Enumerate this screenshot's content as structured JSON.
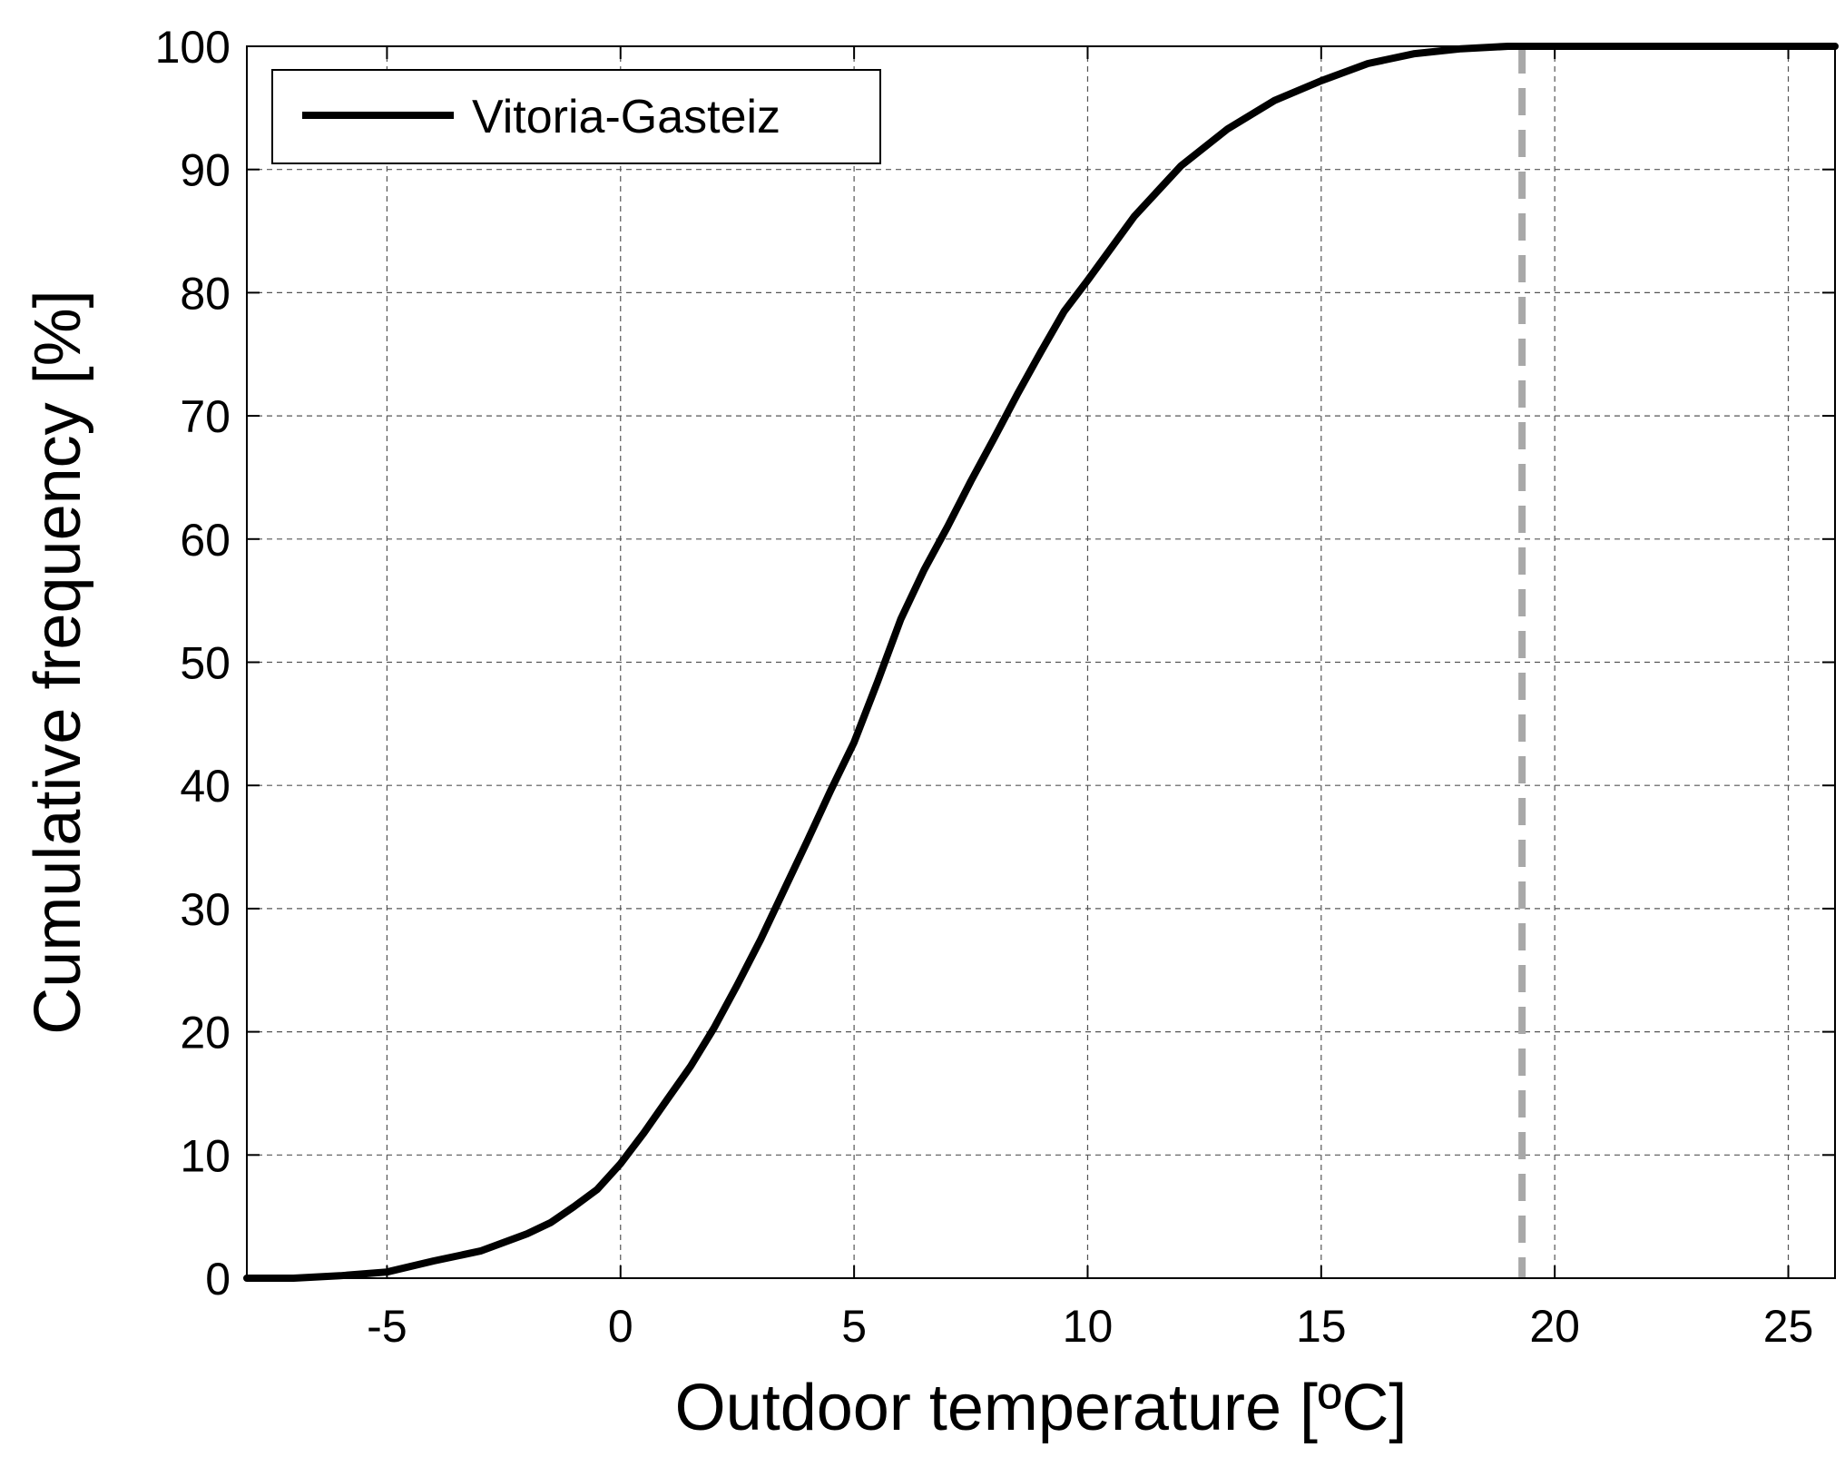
{
  "chart_data": {
    "type": "line",
    "xlabel": "Outdoor temperature [ºC]",
    "ylabel": "Cumulative frequency [%]",
    "xlim": [
      -8,
      26
    ],
    "ylim": [
      0,
      100
    ],
    "xticks": [
      -5,
      0,
      5,
      10,
      15,
      20,
      25
    ],
    "yticks": [
      0,
      10,
      20,
      30,
      40,
      50,
      60,
      70,
      80,
      90,
      100
    ],
    "grid": true,
    "legend_position": "top-left",
    "series": [
      {
        "name": "Vitoria-Gasteiz",
        "color": "#000000",
        "x": [
          -8,
          -7,
          -6,
          -5,
          -4,
          -3,
          -2,
          -1.5,
          -1,
          -0.5,
          0,
          0.5,
          1,
          1.5,
          2,
          2.5,
          3,
          3.5,
          4,
          4.5,
          5,
          5.5,
          6,
          6.5,
          7,
          7.5,
          8,
          8.5,
          9,
          9.5,
          10,
          11,
          12,
          13,
          14,
          15,
          16,
          17,
          18,
          19,
          20,
          22,
          24,
          26
        ],
        "y": [
          0,
          0,
          0.2,
          0.5,
          1.4,
          2.2,
          3.6,
          4.5,
          5.8,
          7.2,
          9.3,
          11.8,
          14.5,
          17.2,
          20.3,
          23.8,
          27.5,
          31.5,
          35.5,
          39.6,
          43.5,
          48.4,
          53.5,
          57.5,
          61.0,
          64.7,
          68.2,
          71.8,
          75.2,
          78.5,
          81.0,
          86.2,
          90.3,
          93.3,
          95.6,
          97.2,
          98.6,
          99.4,
          99.8,
          100,
          100,
          100,
          100,
          100
        ]
      }
    ],
    "reference_lines": [
      {
        "axis": "x",
        "value": 19.3,
        "style": "dashed",
        "color": "#a8a8a8"
      }
    ]
  }
}
